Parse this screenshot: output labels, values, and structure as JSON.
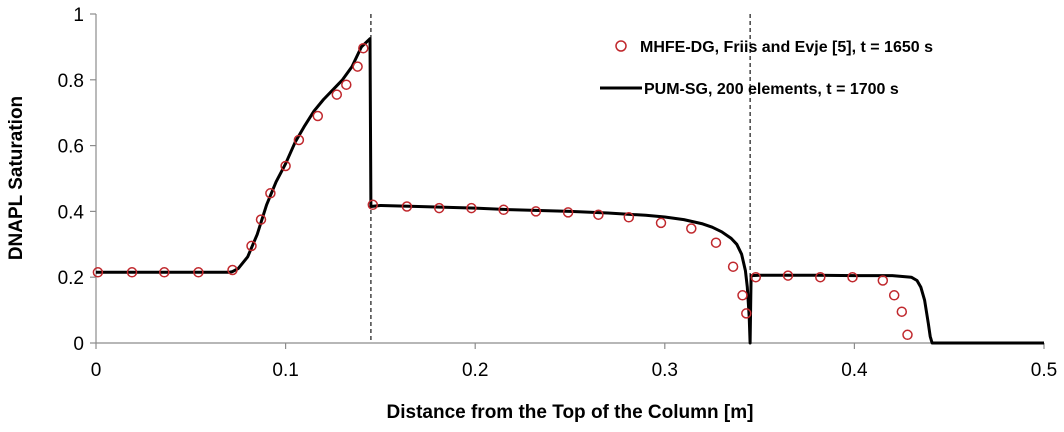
{
  "chart_data": {
    "type": "line",
    "title": "",
    "xlabel": "Distance from the Top of the Column [m]",
    "ylabel": "DNAPL Saturation",
    "xlim": [
      0,
      0.5
    ],
    "ylim": [
      0,
      1
    ],
    "xticks": [
      "0",
      "0.1",
      "0.2",
      "0.3",
      "0.4",
      "0.5"
    ],
    "yticks": [
      "0",
      "0.2",
      "0.4",
      "0.6",
      "0.8",
      "1"
    ],
    "grid": false,
    "legend_position": "top-right",
    "vertical_reference_lines": [
      0.145,
      0.345
    ],
    "series": [
      {
        "name": "MHFE-DG, Friis and Evje [5], t = 1650 s",
        "style": "markers",
        "marker": "open-circle",
        "color": "#C0282D",
        "x": [
          0.001,
          0.019,
          0.036,
          0.054,
          0.072,
          0.082,
          0.087,
          0.092,
          0.1,
          0.107,
          0.117,
          0.127,
          0.132,
          0.138,
          0.141,
          0.146,
          0.164,
          0.181,
          0.198,
          0.215,
          0.232,
          0.249,
          0.265,
          0.281,
          0.298,
          0.314,
          0.327,
          0.336,
          0.341,
          0.343,
          0.348,
          0.365,
          0.382,
          0.399,
          0.415,
          0.421,
          0.425,
          0.428
        ],
        "y": [
          0.215,
          0.215,
          0.215,
          0.215,
          0.222,
          0.295,
          0.375,
          0.455,
          0.538,
          0.617,
          0.69,
          0.755,
          0.785,
          0.84,
          0.896,
          0.42,
          0.415,
          0.41,
          0.41,
          0.405,
          0.4,
          0.397,
          0.39,
          0.382,
          0.365,
          0.348,
          0.305,
          0.232,
          0.145,
          0.09,
          0.2,
          0.205,
          0.2,
          0.2,
          0.19,
          0.145,
          0.095,
          0.025
        ]
      },
      {
        "name": "PUM-SG, 200 elements, t = 1700 s",
        "style": "line",
        "color": "#000000",
        "x": [
          0.0,
          0.07,
          0.072,
          0.075,
          0.08,
          0.085,
          0.09,
          0.095,
          0.1,
          0.105,
          0.11,
          0.115,
          0.12,
          0.125,
          0.13,
          0.135,
          0.14,
          0.1445,
          0.145,
          0.15,
          0.17,
          0.2,
          0.22,
          0.25,
          0.27,
          0.29,
          0.3,
          0.31,
          0.32,
          0.325,
          0.33,
          0.335,
          0.338,
          0.3405,
          0.3425,
          0.3435,
          0.3445,
          0.345,
          0.3455,
          0.35,
          0.38,
          0.4,
          0.42,
          0.43,
          0.433,
          0.435,
          0.437,
          0.439,
          0.44,
          0.441,
          0.5
        ],
        "y": [
          0.215,
          0.215,
          0.217,
          0.226,
          0.262,
          0.33,
          0.42,
          0.49,
          0.545,
          0.61,
          0.66,
          0.705,
          0.74,
          0.77,
          0.8,
          0.84,
          0.9,
          0.925,
          0.415,
          0.418,
          0.415,
          0.41,
          0.405,
          0.4,
          0.395,
          0.388,
          0.383,
          0.375,
          0.362,
          0.352,
          0.338,
          0.318,
          0.3,
          0.27,
          0.22,
          0.17,
          0.08,
          0.0,
          0.205,
          0.206,
          0.206,
          0.205,
          0.205,
          0.2,
          0.19,
          0.17,
          0.13,
          0.06,
          0.02,
          0.0,
          0.0
        ]
      }
    ]
  }
}
